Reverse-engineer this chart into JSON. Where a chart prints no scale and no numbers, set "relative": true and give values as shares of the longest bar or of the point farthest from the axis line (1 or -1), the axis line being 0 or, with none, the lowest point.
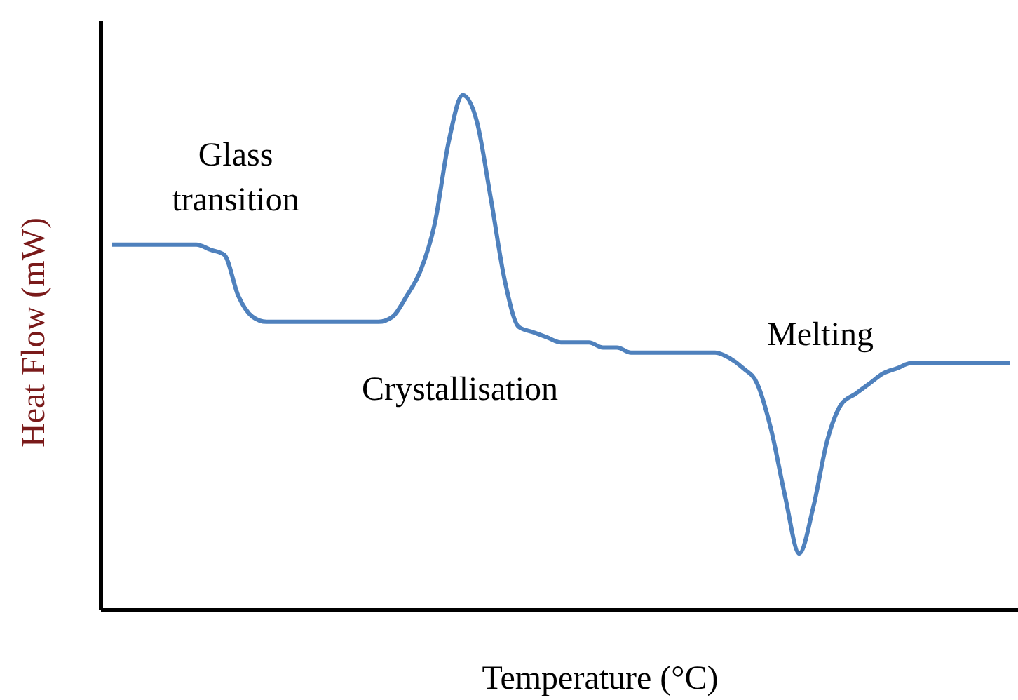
{
  "chart_data": {
    "type": "line",
    "relative": true,
    "xlabel": "Temperature (°C)",
    "ylabel": "Heat Flow (mW)",
    "annotations": [
      "Glass\ntransition",
      "Crystallisation",
      "Melting"
    ],
    "categories": [
      null,
      null,
      null,
      null,
      null,
      null,
      null,
      null,
      null,
      null,
      null,
      null,
      null,
      null,
      null,
      null,
      null,
      null,
      null,
      null,
      null,
      null,
      null,
      null,
      null,
      null,
      null,
      null,
      null,
      null,
      null,
      null,
      null,
      null,
      null,
      null,
      null,
      null,
      null,
      null,
      null,
      null,
      null,
      null,
      null,
      null,
      null,
      null,
      null,
      null,
      null,
      null,
      null,
      null,
      null,
      null,
      null,
      null,
      null,
      null,
      null,
      null,
      null,
      null,
      null
    ],
    "series": [
      {
        "color": "#4f81bd",
        "values": [
          0.71,
          0.71,
          0.71,
          0.71,
          0.71,
          0.71,
          0.71,
          0.7,
          0.69,
          0.61,
          0.57,
          0.56,
          0.56,
          0.56,
          0.56,
          0.56,
          0.56,
          0.56,
          0.56,
          0.56,
          0.57,
          0.61,
          0.66,
          0.75,
          0.91,
          1,
          0.95,
          0.8,
          0.64,
          0.55,
          0.54,
          0.53,
          0.52,
          0.52,
          0.52,
          0.51,
          0.51,
          0.5,
          0.5,
          0.5,
          0.5,
          0.5,
          0.5,
          0.5,
          0.49,
          0.47,
          0.44,
          0.35,
          0.22,
          0.11,
          0.2,
          0.33,
          0.4,
          0.42,
          0.44,
          0.46,
          0.47,
          0.48,
          0.48,
          0.48,
          0.48,
          0.48,
          0.48,
          0.48,
          0.48
        ]
      }
    ],
    "grid": false,
    "legend": false,
    "marker": "none",
    "line_style": "solid"
  }
}
